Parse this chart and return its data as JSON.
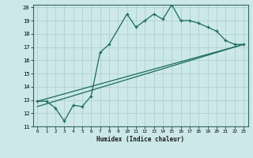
{
  "title": "",
  "xlabel": "Humidex (Indice chaleur)",
  "bg_color": "#cce8e8",
  "grid_color": "#aacccc",
  "line_color": "#1a6b5a",
  "xlim": [
    0,
    23
  ],
  "ylim": [
    11,
    20
  ],
  "xticks": [
    0,
    1,
    2,
    3,
    4,
    5,
    6,
    7,
    8,
    9,
    10,
    11,
    12,
    13,
    14,
    15,
    16,
    17,
    18,
    19,
    20,
    21,
    22,
    23
  ],
  "yticks": [
    11,
    12,
    13,
    14,
    15,
    16,
    17,
    18,
    19,
    20
  ],
  "curve1_x": [
    0,
    1,
    2,
    3,
    4,
    5,
    6,
    7,
    8,
    10,
    11,
    12,
    13,
    14,
    15,
    16,
    17,
    18,
    19,
    20,
    21,
    22,
    23
  ],
  "curve1_y": [
    12.9,
    12.9,
    12.4,
    11.4,
    12.6,
    12.5,
    13.3,
    16.6,
    17.2,
    19.5,
    18.5,
    19.0,
    19.5,
    19.1,
    20.2,
    19.0,
    19.0,
    18.8,
    18.5,
    18.2,
    17.5,
    17.2,
    17.2
  ],
  "line2_x": [
    0,
    23
  ],
  "line2_y": [
    12.9,
    17.2
  ],
  "line3_x": [
    0,
    23
  ],
  "line3_y": [
    12.5,
    17.2
  ]
}
